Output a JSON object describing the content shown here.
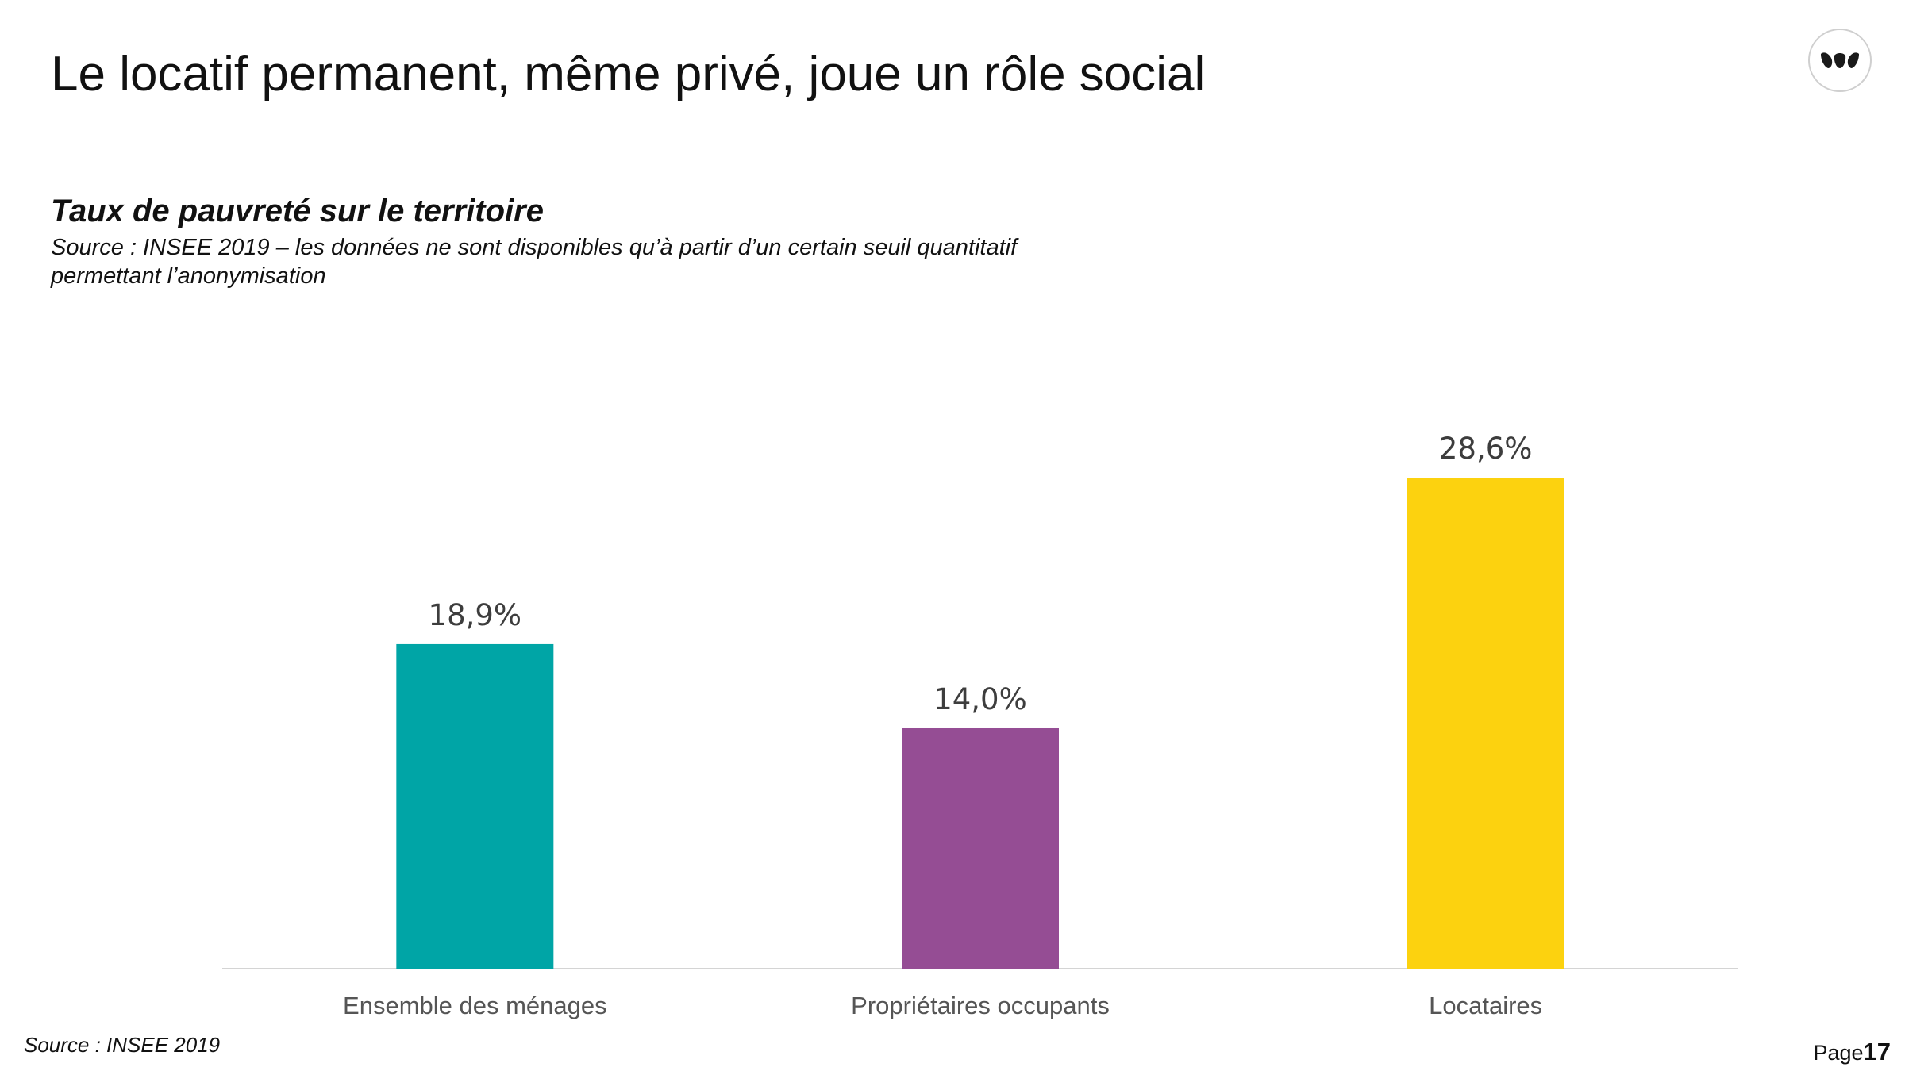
{
  "slide": {
    "title": "Le locatif permanent, même privé, joue un rôle social",
    "footer_source": "Source : INSEE 2019",
    "page_label": "Page",
    "page_number": "17"
  },
  "logo": {
    "icon": "leaves-logo-icon"
  },
  "chart_data": {
    "type": "bar",
    "title": "Taux de pauvreté sur le territoire",
    "subtitle": "Source : INSEE 2019 – les données ne sont disponibles qu’à partir d’un certain seuil quantitatif permettant l’anonymisation",
    "xlabel": "",
    "ylabel": "",
    "ylim": [
      0,
      28.6
    ],
    "grid": false,
    "legend": "none",
    "categories": [
      "Ensemble des ménages",
      "Propriétaires occupants",
      "Locataires"
    ],
    "values": [
      18.9,
      14.0,
      28.6
    ],
    "value_labels": [
      "18,9%",
      "14,0%",
      "28,6%"
    ],
    "colors": [
      "#00A5A6",
      "#954D94",
      "#FCD20F"
    ]
  }
}
